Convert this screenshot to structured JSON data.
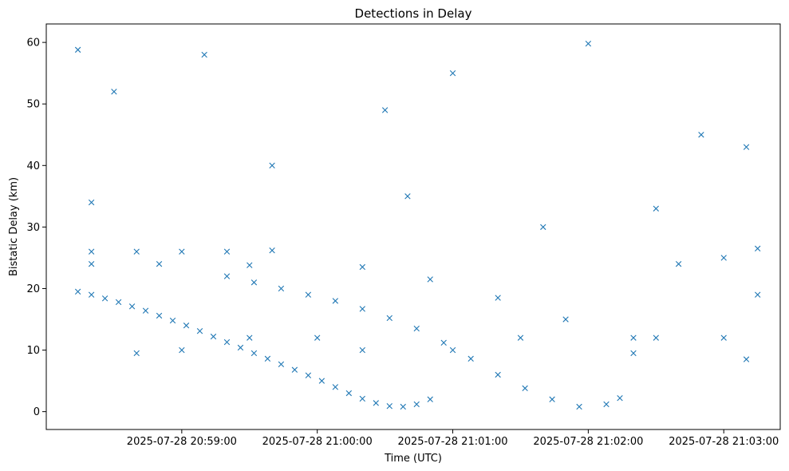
{
  "chart_data": {
    "type": "scatter",
    "title": "Detections in Delay",
    "xlabel": "Time (UTC)",
    "ylabel": "Bistatic Delay (km)",
    "marker": "x",
    "color": "#1f77b4",
    "grid": false,
    "legend": "none",
    "xlim": [
      "2025-07-28 20:58:00",
      "2025-07-28 21:03:25"
    ],
    "ylim": [
      -2.9,
      63
    ],
    "x_ticks": [
      "2025-07-28 20:59:00",
      "2025-07-28 21:00:00",
      "2025-07-28 21:01:00",
      "2025-07-28 21:02:00",
      "2025-07-28 21:03:00"
    ],
    "y_ticks": [
      0,
      10,
      20,
      30,
      40,
      50,
      60
    ],
    "series": [
      {
        "description": "approximate scattered detections sampled along visible tracks",
        "points": [
          [
            "2025-07-28 20:58:14",
            19.5
          ],
          [
            "2025-07-28 20:58:20",
            19.0
          ],
          [
            "2025-07-28 20:58:26",
            18.4
          ],
          [
            "2025-07-28 20:58:32",
            17.8
          ],
          [
            "2025-07-28 20:58:38",
            17.1
          ],
          [
            "2025-07-28 20:58:44",
            16.4
          ],
          [
            "2025-07-28 20:58:50",
            15.6
          ],
          [
            "2025-07-28 20:58:56",
            14.8
          ],
          [
            "2025-07-28 20:59:02",
            14.0
          ],
          [
            "2025-07-28 20:59:08",
            13.1
          ],
          [
            "2025-07-28 20:59:14",
            12.2
          ],
          [
            "2025-07-28 20:59:20",
            11.3
          ],
          [
            "2025-07-28 20:59:26",
            10.4
          ],
          [
            "2025-07-28 20:59:32",
            9.5
          ],
          [
            "2025-07-28 20:59:38",
            8.6
          ],
          [
            "2025-07-28 20:59:44",
            7.7
          ],
          [
            "2025-07-28 20:59:50",
            6.8
          ],
          [
            "2025-07-28 20:59:56",
            5.9
          ],
          [
            "2025-07-28 21:00:02",
            5.0
          ],
          [
            "2025-07-28 21:00:08",
            4.0
          ],
          [
            "2025-07-28 21:00:14",
            3.0
          ],
          [
            "2025-07-28 21:00:20",
            2.1
          ],
          [
            "2025-07-28 21:00:26",
            1.4
          ],
          [
            "2025-07-28 21:00:32",
            0.9
          ],
          [
            "2025-07-28 21:00:38",
            0.8
          ],
          [
            "2025-07-28 21:00:44",
            1.2
          ],
          [
            "2025-07-28 21:00:50",
            2.0
          ],
          [
            "2025-07-28 20:59:20",
            22.0
          ],
          [
            "2025-07-28 20:59:32",
            21.0
          ],
          [
            "2025-07-28 20:59:44",
            20.0
          ],
          [
            "2025-07-28 20:59:56",
            19.0
          ],
          [
            "2025-07-28 21:00:08",
            18.0
          ],
          [
            "2025-07-28 21:00:20",
            16.7
          ],
          [
            "2025-07-28 21:00:32",
            15.2
          ],
          [
            "2025-07-28 21:00:44",
            13.5
          ],
          [
            "2025-07-28 21:00:56",
            11.2
          ],
          [
            "2025-07-28 21:01:08",
            8.6
          ],
          [
            "2025-07-28 21:01:20",
            6.0
          ],
          [
            "2025-07-28 21:01:32",
            3.8
          ],
          [
            "2025-07-28 21:01:44",
            2.0
          ],
          [
            "2025-07-28 21:01:56",
            0.8
          ],
          [
            "2025-07-28 21:02:08",
            1.2
          ],
          [
            "2025-07-28 21:02:14",
            2.2
          ],
          [
            "2025-07-28 21:00:20",
            23.5
          ],
          [
            "2025-07-28 21:00:50",
            21.5
          ],
          [
            "2025-07-28 21:01:20",
            18.5
          ],
          [
            "2025-07-28 21:01:50",
            15.0
          ],
          [
            "2025-07-28 21:02:20",
            12.0
          ],
          [
            "2025-07-28 20:58:20",
            26.0
          ],
          [
            "2025-07-28 20:58:40",
            26.0
          ],
          [
            "2025-07-28 20:59:00",
            26.0
          ],
          [
            "2025-07-28 20:59:20",
            26.0
          ],
          [
            "2025-07-28 20:59:40",
            26.2
          ],
          [
            "2025-07-28 20:58:20",
            24.0
          ],
          [
            "2025-07-28 20:58:50",
            24.0
          ],
          [
            "2025-07-28 20:59:30",
            23.8
          ],
          [
            "2025-07-28 21:02:40",
            24.0
          ],
          [
            "2025-07-28 21:03:00",
            25.0
          ],
          [
            "2025-07-28 21:03:15",
            26.5
          ],
          [
            "2025-07-28 21:00:00",
            12.0
          ],
          [
            "2025-07-28 20:59:30",
            12.0
          ],
          [
            "2025-07-28 21:01:30",
            12.0
          ],
          [
            "2025-07-28 21:02:30",
            12.0
          ],
          [
            "2025-07-28 21:03:00",
            12.0
          ],
          [
            "2025-07-28 20:58:40",
            9.5
          ],
          [
            "2025-07-28 20:59:00",
            10.0
          ],
          [
            "2025-07-28 21:00:20",
            10.0
          ],
          [
            "2025-07-28 21:01:00",
            10.0
          ],
          [
            "2025-07-28 21:02:20",
            9.5
          ],
          [
            "2025-07-28 21:03:10",
            8.5
          ],
          [
            "2025-07-28 20:58:14",
            58.8
          ],
          [
            "2025-07-28 20:58:30",
            52.0
          ],
          [
            "2025-07-28 20:59:10",
            58.0
          ],
          [
            "2025-07-28 21:00:30",
            49.0
          ],
          [
            "2025-07-28 21:01:00",
            55.0
          ],
          [
            "2025-07-28 21:02:00",
            59.8
          ],
          [
            "2025-07-28 21:02:50",
            45.0
          ],
          [
            "2025-07-28 21:03:10",
            43.0
          ],
          [
            "2025-07-28 20:59:40",
            40.0
          ],
          [
            "2025-07-28 21:00:40",
            35.0
          ],
          [
            "2025-07-28 21:01:40",
            30.0
          ],
          [
            "2025-07-28 21:02:30",
            33.0
          ],
          [
            "2025-07-28 20:58:20",
            34.0
          ],
          [
            "2025-07-28 21:03:15",
            19.0
          ]
        ]
      }
    ]
  }
}
